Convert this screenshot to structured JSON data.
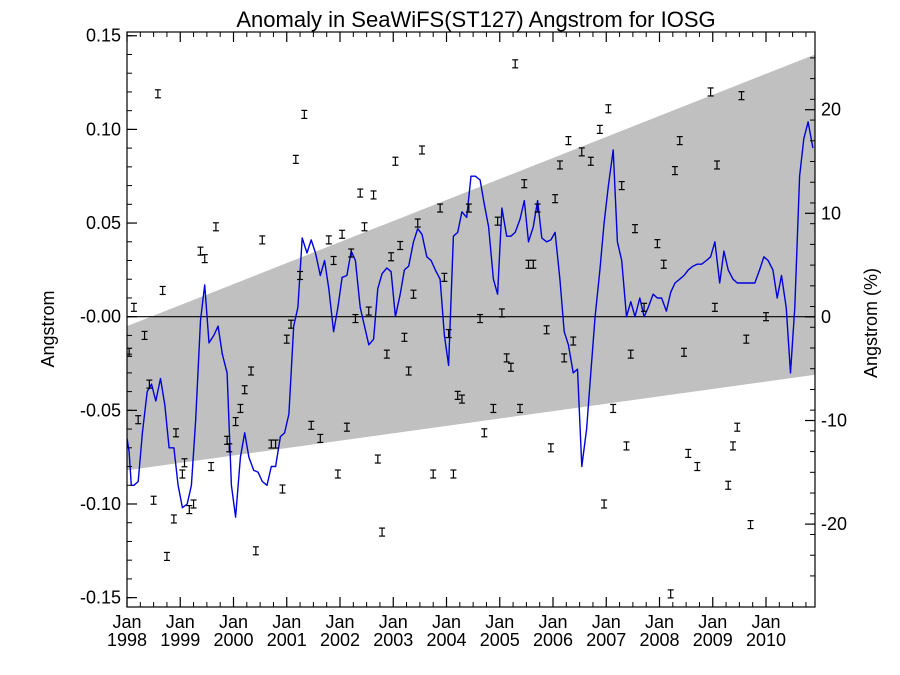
{
  "chart_data": {
    "type": "line",
    "title": "Anomaly in SeaWiFS(ST127) Angstrom for IOSG",
    "ylabel": "Angstrom",
    "ylabel_right": "Angstrom (%)",
    "ylim": [
      -0.155,
      0.152
    ],
    "y2lim": [
      -28,
      27.5
    ],
    "xlim": [
      1998.0,
      2010.92
    ],
    "yticks": [
      0.15,
      0.1,
      0.05,
      -0.0,
      -0.05,
      -0.1,
      -0.15
    ],
    "ytick_labels": [
      "0.15",
      "0.10",
      "0.05",
      "-0.00",
      "-0.05",
      "-0.10",
      "-0.15"
    ],
    "y2ticks": [
      20,
      10,
      0,
      -10,
      -20
    ],
    "y2tick_labels": [
      "20",
      "10",
      "0",
      "-10",
      "-20"
    ],
    "xticks": [
      {
        "x": 1998,
        "month": "Jan",
        "year": "1998"
      },
      {
        "x": 1999,
        "month": "Jan",
        "year": "1999"
      },
      {
        "x": 2000,
        "month": "Jan",
        "year": "2000"
      },
      {
        "x": 2001,
        "month": "Jan",
        "year": "2001"
      },
      {
        "x": 2002,
        "month": "Jan",
        "year": "2002"
      },
      {
        "x": 2003,
        "month": "Jan",
        "year": "2003"
      },
      {
        "x": 2004,
        "month": "Jan",
        "year": "2004"
      },
      {
        "x": 2005,
        "month": "Jan",
        "year": "2005"
      },
      {
        "x": 2006,
        "month": "Jan",
        "year": "2006"
      },
      {
        "x": 2007,
        "month": "Jan",
        "year": "2007"
      },
      {
        "x": 2008,
        "month": "Jan",
        "year": "2008"
      },
      {
        "x": 2009,
        "month": "Jan",
        "year": "2009"
      },
      {
        "x": 2010,
        "month": "Jan",
        "year": "2010"
      }
    ],
    "band": {
      "color": "#c0c0c0",
      "upper": [
        [
          1998.0,
          -0.005
        ],
        [
          2010.92,
          0.14
        ]
      ],
      "lower": [
        [
          1998.0,
          -0.082
        ],
        [
          2010.92,
          -0.031
        ]
      ]
    },
    "zero_line": 0,
    "series": [
      {
        "kind": "line",
        "color": "#0000dd",
        "points": [
          [
            1998.0,
            -0.065
          ],
          [
            1998.04,
            -0.072
          ],
          [
            1998.08,
            -0.09
          ],
          [
            1998.13,
            -0.09
          ],
          [
            1998.21,
            -0.088
          ],
          [
            1998.29,
            -0.062
          ],
          [
            1998.38,
            -0.04
          ],
          [
            1998.46,
            -0.036
          ],
          [
            1998.54,
            -0.045
          ],
          [
            1998.63,
            -0.033
          ],
          [
            1998.71,
            -0.047
          ],
          [
            1998.79,
            -0.07
          ],
          [
            1998.88,
            -0.07
          ],
          [
            1998.96,
            -0.09
          ],
          [
            1999.04,
            -0.102
          ],
          [
            1999.13,
            -0.1
          ],
          [
            1999.21,
            -0.09
          ],
          [
            1999.29,
            -0.055
          ],
          [
            1999.38,
            -0.002
          ],
          [
            1999.46,
            0.017
          ],
          [
            1999.54,
            -0.014
          ],
          [
            1999.63,
            -0.01
          ],
          [
            1999.71,
            -0.005
          ],
          [
            1999.79,
            -0.02
          ],
          [
            1999.88,
            -0.03
          ],
          [
            1999.96,
            -0.09
          ],
          [
            2000.04,
            -0.107
          ],
          [
            2000.13,
            -0.075
          ],
          [
            2000.21,
            -0.062
          ],
          [
            2000.29,
            -0.075
          ],
          [
            2000.38,
            -0.082
          ],
          [
            2000.46,
            -0.083
          ],
          [
            2000.54,
            -0.088
          ],
          [
            2000.63,
            -0.09
          ],
          [
            2000.71,
            -0.08
          ],
          [
            2000.79,
            -0.08
          ],
          [
            2000.88,
            -0.064
          ],
          [
            2000.96,
            -0.062
          ],
          [
            2001.04,
            -0.052
          ],
          [
            2001.13,
            -0.005
          ],
          [
            2001.21,
            0.005
          ],
          [
            2001.29,
            0.042
          ],
          [
            2001.38,
            0.034
          ],
          [
            2001.46,
            0.041
          ],
          [
            2001.54,
            0.034
          ],
          [
            2001.63,
            0.022
          ],
          [
            2001.71,
            0.03
          ],
          [
            2001.79,
            0.015
          ],
          [
            2001.88,
            -0.008
          ],
          [
            2001.96,
            0.005
          ],
          [
            2002.04,
            0.021
          ],
          [
            2002.13,
            0.022
          ],
          [
            2002.21,
            0.035
          ],
          [
            2002.29,
            0.03
          ],
          [
            2002.38,
            0.005
          ],
          [
            2002.46,
            -0.005
          ],
          [
            2002.54,
            -0.015
          ],
          [
            2002.63,
            -0.012
          ],
          [
            2002.71,
            0.015
          ],
          [
            2002.79,
            0.023
          ],
          [
            2002.88,
            0.026
          ],
          [
            2002.96,
            0.024
          ],
          [
            2003.04,
            0.0
          ],
          [
            2003.13,
            0.012
          ],
          [
            2003.21,
            0.025
          ],
          [
            2003.29,
            0.027
          ],
          [
            2003.38,
            0.04
          ],
          [
            2003.46,
            0.047
          ],
          [
            2003.54,
            0.044
          ],
          [
            2003.63,
            0.032
          ],
          [
            2003.71,
            0.03
          ],
          [
            2003.79,
            0.025
          ],
          [
            2003.88,
            0.02
          ],
          [
            2003.96,
            -0.01
          ],
          [
            2004.04,
            -0.026
          ],
          [
            2004.13,
            0.043
          ],
          [
            2004.21,
            0.045
          ],
          [
            2004.29,
            0.056
          ],
          [
            2004.38,
            0.053
          ],
          [
            2004.46,
            0.075
          ],
          [
            2004.54,
            0.075
          ],
          [
            2004.63,
            0.073
          ],
          [
            2004.71,
            0.06
          ],
          [
            2004.79,
            0.048
          ],
          [
            2004.88,
            0.02
          ],
          [
            2004.96,
            0.012
          ],
          [
            2005.04,
            0.058
          ],
          [
            2005.13,
            0.043
          ],
          [
            2005.21,
            0.043
          ],
          [
            2005.29,
            0.045
          ],
          [
            2005.38,
            0.052
          ],
          [
            2005.46,
            0.062
          ],
          [
            2005.54,
            0.04
          ],
          [
            2005.63,
            0.048
          ],
          [
            2005.71,
            0.062
          ],
          [
            2005.79,
            0.042
          ],
          [
            2005.88,
            0.04
          ],
          [
            2005.96,
            0.041
          ],
          [
            2006.04,
            0.045
          ],
          [
            2006.13,
            0.02
          ],
          [
            2006.21,
            -0.008
          ],
          [
            2006.29,
            -0.015
          ],
          [
            2006.38,
            -0.03
          ],
          [
            2006.46,
            -0.028
          ],
          [
            2006.54,
            -0.08
          ],
          [
            2006.63,
            -0.06
          ],
          [
            2006.71,
            -0.03
          ],
          [
            2006.79,
            0.0
          ],
          [
            2006.88,
            0.025
          ],
          [
            2006.96,
            0.05
          ],
          [
            2007.04,
            0.07
          ],
          [
            2007.13,
            0.089
          ],
          [
            2007.21,
            0.04
          ],
          [
            2007.29,
            0.03
          ],
          [
            2007.38,
            0.0
          ],
          [
            2007.46,
            0.008
          ],
          [
            2007.54,
            0.0
          ],
          [
            2007.63,
            0.01
          ],
          [
            2007.71,
            0.0
          ],
          [
            2007.79,
            0.005
          ],
          [
            2007.88,
            0.012
          ],
          [
            2007.96,
            0.01
          ],
          [
            2008.04,
            0.01
          ],
          [
            2008.13,
            0.003
          ],
          [
            2008.21,
            0.013
          ],
          [
            2008.29,
            0.018
          ],
          [
            2008.38,
            0.02
          ],
          [
            2008.46,
            0.022
          ],
          [
            2008.54,
            0.025
          ],
          [
            2008.63,
            0.027
          ],
          [
            2008.71,
            0.028
          ],
          [
            2008.79,
            0.028
          ],
          [
            2008.88,
            0.03
          ],
          [
            2008.96,
            0.032
          ],
          [
            2009.04,
            0.04
          ],
          [
            2009.13,
            0.018
          ],
          [
            2009.21,
            0.035
          ],
          [
            2009.29,
            0.025
          ],
          [
            2009.38,
            0.02
          ],
          [
            2009.46,
            0.018
          ],
          [
            2009.54,
            0.018
          ],
          [
            2009.71,
            0.018
          ],
          [
            2009.79,
            0.018
          ],
          [
            2009.88,
            0.025
          ],
          [
            2009.96,
            0.032
          ],
          [
            2010.04,
            0.03
          ],
          [
            2010.13,
            0.025
          ],
          [
            2010.21,
            0.01
          ],
          [
            2010.29,
            0.022
          ],
          [
            2010.38,
            0.005
          ],
          [
            2010.46,
            -0.03
          ],
          [
            2010.54,
            0.005
          ],
          [
            2010.63,
            0.075
          ],
          [
            2010.71,
            0.095
          ],
          [
            2010.79,
            0.104
          ],
          [
            2010.88,
            0.09
          ]
        ]
      },
      {
        "kind": "errorbar",
        "color": "#000000",
        "points": [
          [
            1998.04,
            -0.019
          ],
          [
            1998.13,
            0.005
          ],
          [
            1998.21,
            -0.055
          ],
          [
            1998.33,
            -0.01
          ],
          [
            1998.42,
            -0.036
          ],
          [
            1998.5,
            -0.098
          ],
          [
            1998.58,
            0.119
          ],
          [
            1998.67,
            0.014
          ],
          [
            1998.75,
            -0.128
          ],
          [
            1998.88,
            -0.108
          ],
          [
            1998.92,
            -0.062
          ],
          [
            1999.04,
            -0.084
          ],
          [
            1999.08,
            -0.078
          ],
          [
            1999.17,
            -0.103
          ],
          [
            1999.25,
            -0.1
          ],
          [
            1999.38,
            0.035
          ],
          [
            1999.46,
            0.031
          ],
          [
            1999.58,
            -0.08
          ],
          [
            1999.67,
            0.048
          ],
          [
            1999.88,
            -0.066
          ],
          [
            1999.92,
            -0.07
          ],
          [
            2000.04,
            -0.056
          ],
          [
            2000.13,
            -0.049
          ],
          [
            2000.21,
            -0.039
          ],
          [
            2000.33,
            -0.029
          ],
          [
            2000.42,
            -0.125
          ],
          [
            2000.54,
            0.041
          ],
          [
            2000.71,
            -0.068
          ],
          [
            2000.79,
            -0.068
          ],
          [
            2000.92,
            -0.092
          ],
          [
            2001.0,
            -0.012
          ],
          [
            2001.08,
            -0.004
          ],
          [
            2001.17,
            0.084
          ],
          [
            2001.25,
            0.022
          ],
          [
            2001.33,
            0.108
          ],
          [
            2001.46,
            -0.058
          ],
          [
            2001.63,
            -0.065
          ],
          [
            2001.79,
            0.041
          ],
          [
            2001.88,
            0.03
          ],
          [
            2001.96,
            -0.084
          ],
          [
            2002.04,
            0.044
          ],
          [
            2002.13,
            -0.059
          ],
          [
            2002.21,
            0.034
          ],
          [
            2002.29,
            -0.001
          ],
          [
            2002.38,
            0.066
          ],
          [
            2002.46,
            0.048
          ],
          [
            2002.54,
            0.003
          ],
          [
            2002.63,
            0.065
          ],
          [
            2002.71,
            -0.076
          ],
          [
            2002.79,
            -0.115
          ],
          [
            2002.88,
            -0.02
          ],
          [
            2002.96,
            0.032
          ],
          [
            2003.04,
            0.083
          ],
          [
            2003.13,
            0.038
          ],
          [
            2003.21,
            -0.011
          ],
          [
            2003.29,
            -0.029
          ],
          [
            2003.38,
            0.012
          ],
          [
            2003.46,
            0.05
          ],
          [
            2003.54,
            0.089
          ],
          [
            2003.75,
            -0.084
          ],
          [
            2003.88,
            0.058
          ],
          [
            2003.96,
            0.021
          ],
          [
            2004.04,
            -0.009
          ],
          [
            2004.13,
            -0.084
          ],
          [
            2004.21,
            -0.042
          ],
          [
            2004.29,
            -0.044
          ],
          [
            2004.42,
            0.058
          ],
          [
            2004.63,
            -0.001
          ],
          [
            2004.71,
            -0.062
          ],
          [
            2004.88,
            -0.049
          ],
          [
            2004.96,
            0.051
          ],
          [
            2005.04,
            0.002
          ],
          [
            2005.13,
            -0.022
          ],
          [
            2005.21,
            -0.027
          ],
          [
            2005.29,
            0.135
          ],
          [
            2005.38,
            -0.049
          ],
          [
            2005.46,
            0.071
          ],
          [
            2005.54,
            0.028
          ],
          [
            2005.63,
            0.028
          ],
          [
            2005.71,
            0.058
          ],
          [
            2005.88,
            -0.007
          ],
          [
            2005.96,
            -0.07
          ],
          [
            2006.04,
            0.063
          ],
          [
            2006.13,
            0.081
          ],
          [
            2006.21,
            -0.022
          ],
          [
            2006.29,
            0.094
          ],
          [
            2006.38,
            -0.013
          ],
          [
            2006.54,
            0.088
          ],
          [
            2006.71,
            0.083
          ],
          [
            2006.88,
            0.1
          ],
          [
            2006.96,
            -0.1
          ],
          [
            2007.04,
            0.111
          ],
          [
            2007.13,
            -0.049
          ],
          [
            2007.29,
            0.07
          ],
          [
            2007.38,
            -0.069
          ],
          [
            2007.46,
            -0.02
          ],
          [
            2007.54,
            0.047
          ],
          [
            2007.71,
            0.005
          ],
          [
            2007.96,
            0.039
          ],
          [
            2008.08,
            0.028
          ],
          [
            2008.21,
            -0.148
          ],
          [
            2008.29,
            0.078
          ],
          [
            2008.38,
            0.094
          ],
          [
            2008.46,
            -0.019
          ],
          [
            2008.54,
            -0.073
          ],
          [
            2008.71,
            -0.08
          ],
          [
            2008.96,
            0.12
          ],
          [
            2009.04,
            0.005
          ],
          [
            2009.08,
            0.081
          ],
          [
            2009.29,
            -0.09
          ],
          [
            2009.38,
            -0.069
          ],
          [
            2009.46,
            -0.059
          ],
          [
            2009.54,
            0.118
          ],
          [
            2009.63,
            -0.012
          ],
          [
            2009.71,
            -0.111
          ],
          [
            2010.0,
            0.0
          ]
        ]
      }
    ]
  }
}
